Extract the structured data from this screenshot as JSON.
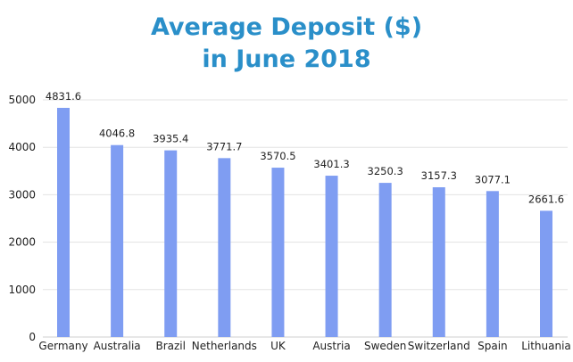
{
  "chart_data": {
    "type": "bar",
    "title_line1": "Average Deposit ($)",
    "title_line2": "in June 2018",
    "xlabel": "",
    "ylabel": "",
    "categories": [
      "Germany",
      "Australia",
      "Brazil",
      "Netherlands",
      "UK",
      "Austria",
      "Sweden",
      "Switzerland",
      "Spain",
      "Lithuania"
    ],
    "values": [
      4831.6,
      4046.8,
      3935.4,
      3771.7,
      3570.5,
      3401.3,
      3250.3,
      3157.3,
      3077.1,
      2661.6
    ],
    "data_labels": [
      "4831.6",
      "4046.8",
      "3935.4",
      "3771.7",
      "3570.5",
      "3401.3",
      "3250.3",
      "3157.3",
      "3077.1",
      "2661.6"
    ],
    "y_ticks": [
      0,
      1000,
      2000,
      3000,
      4000,
      5000
    ],
    "ylim": [
      0,
      5000
    ],
    "grid": true,
    "legend": "none",
    "colors": {
      "bar": "#7f9df2",
      "title": "#2a8fc9",
      "grid": "#e3e3e3"
    }
  }
}
